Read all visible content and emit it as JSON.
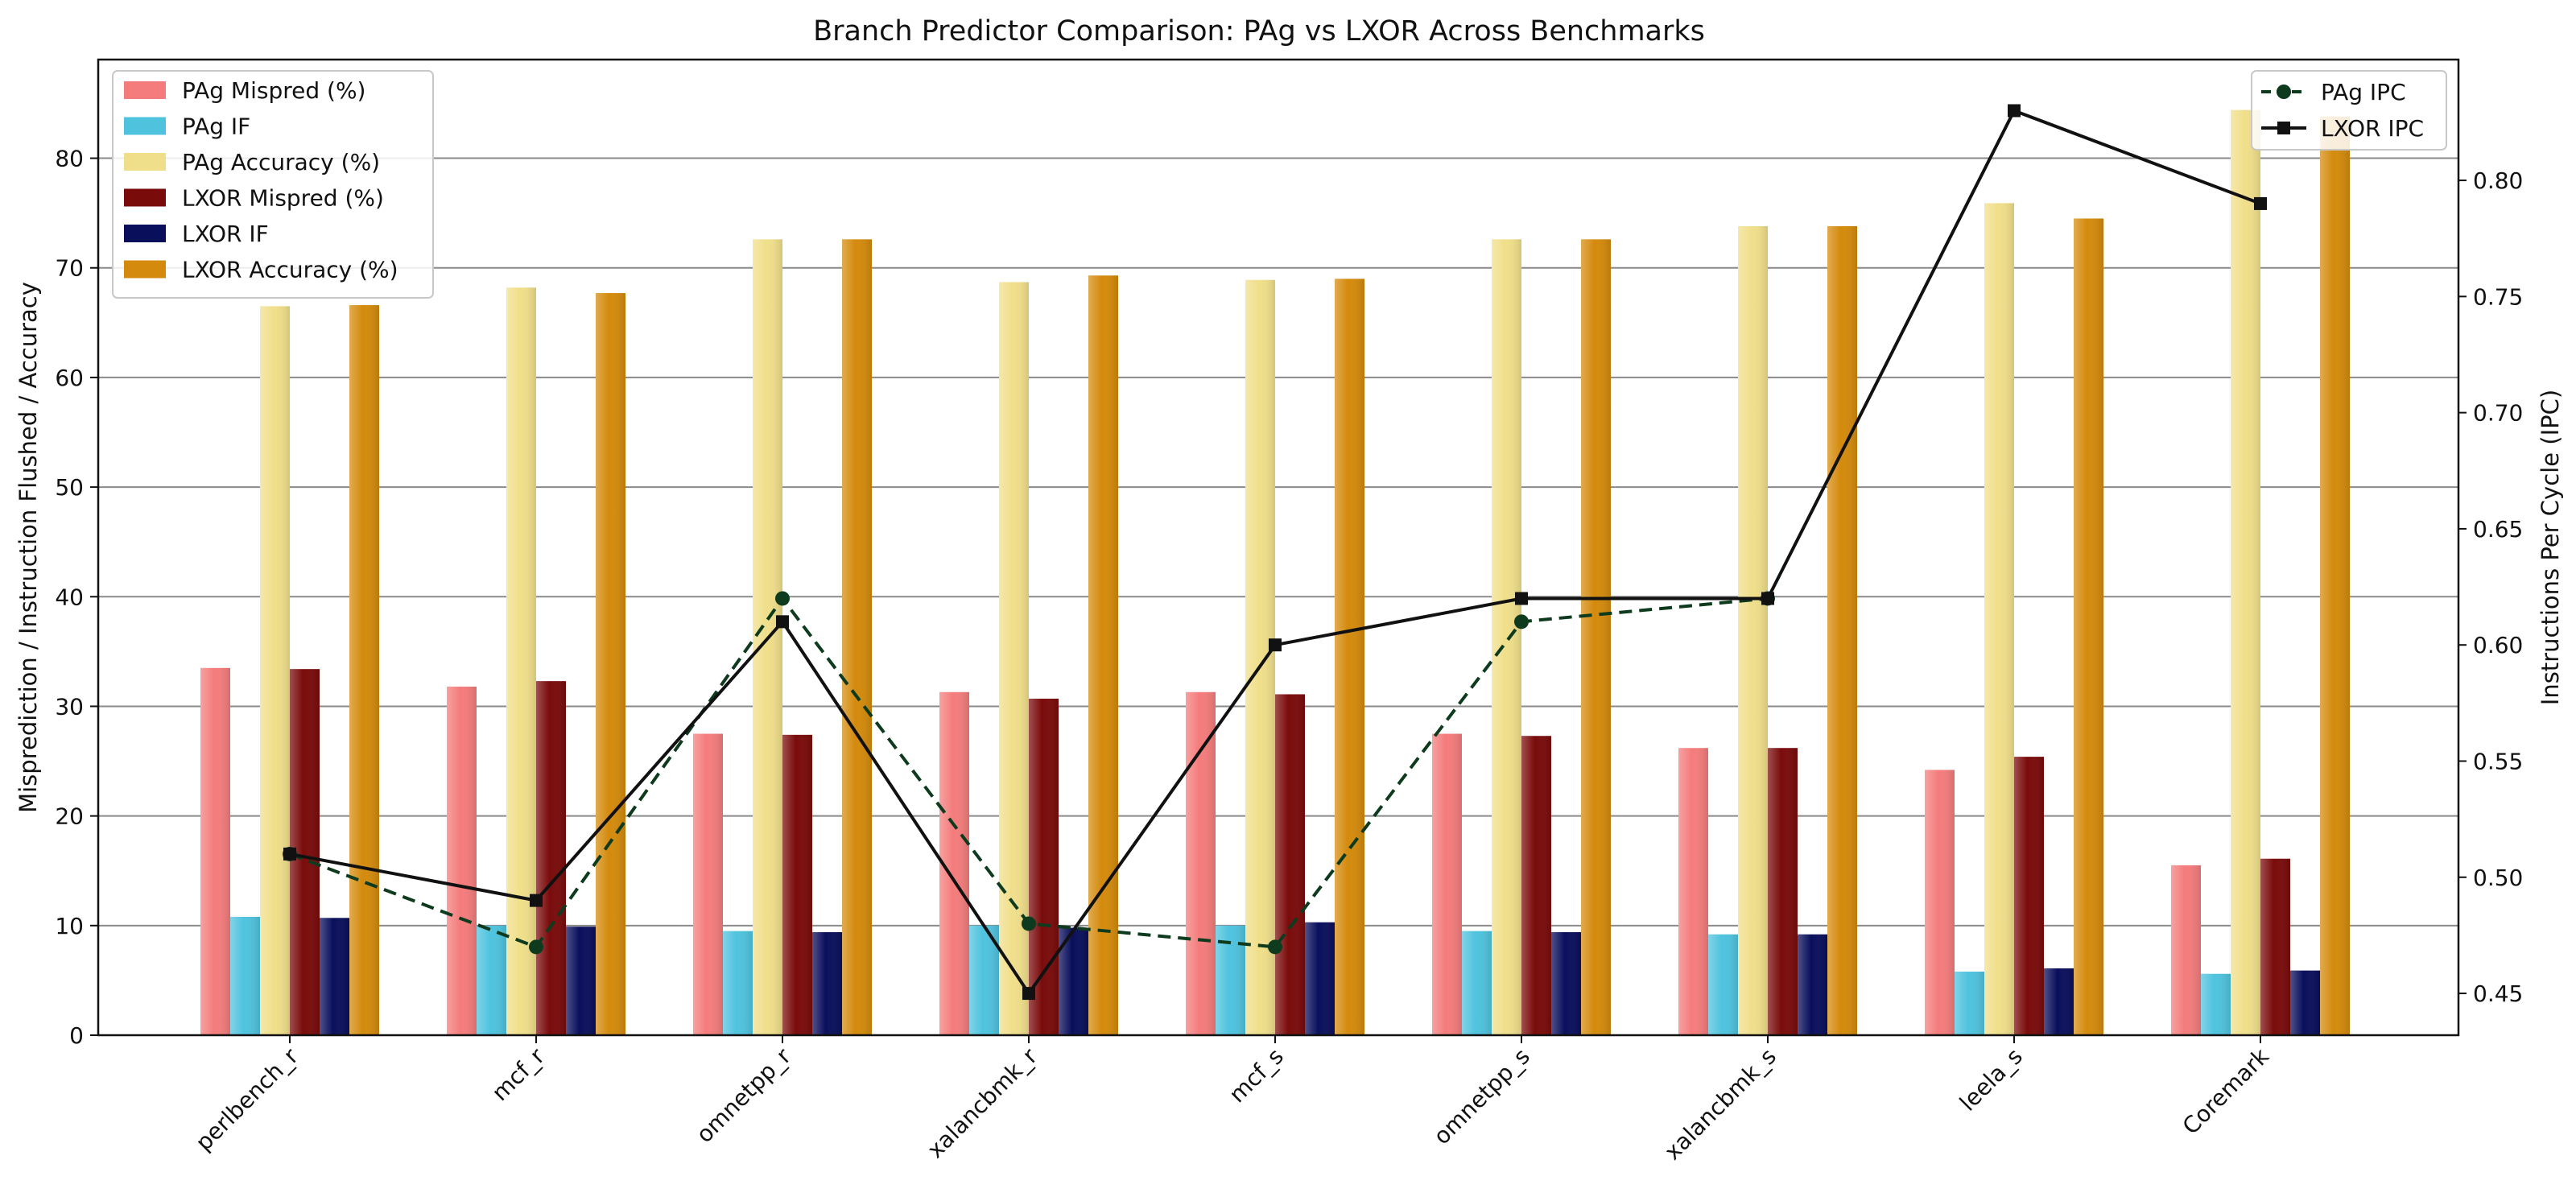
{
  "chart_data": {
    "type": "bar",
    "title": "Branch Predictor Comparison: PAg vs LXOR Across Benchmarks",
    "xlabel": "",
    "ylabel": "Misprediction / Instruction Flushed / Accuracy",
    "y2label": "Instructions Per Cycle (IPC)",
    "ylim": [
      0,
      89
    ],
    "yticks": [
      0,
      10,
      20,
      30,
      40,
      50,
      60,
      70,
      80
    ],
    "y2lim": [
      0.432,
      0.852
    ],
    "y2ticks": [
      0.45,
      0.5,
      0.55,
      0.6,
      0.65,
      0.7,
      0.75,
      0.8
    ],
    "y2tick_labels": [
      "0.45",
      "0.50",
      "0.55",
      "0.60",
      "0.65",
      "0.70",
      "0.75",
      "0.80"
    ],
    "grid": "horizontal",
    "categories": [
      "perlbench_r",
      "mcf_r",
      "omnetpp_r",
      "xalancbmk_r",
      "mcf_s",
      "omnetpp_s",
      "xalancbmk_s",
      "leela_s",
      "Coremark"
    ],
    "series": [
      {
        "name": "PAg Mispred (%)",
        "color": "#f47c7c",
        "values": [
          33.5,
          31.8,
          27.5,
          31.3,
          31.3,
          27.5,
          26.2,
          24.2,
          15.5
        ]
      },
      {
        "name": "PAg IF",
        "color": "#4fc3de",
        "values": [
          10.8,
          10.0,
          9.5,
          10.0,
          10.0,
          9.5,
          9.2,
          5.8,
          5.6
        ]
      },
      {
        "name": "PAg Accuracy (%)",
        "color": "#f0df8a",
        "values": [
          66.5,
          68.2,
          72.6,
          68.7,
          68.9,
          72.6,
          73.8,
          75.9,
          84.4
        ]
      },
      {
        "name": "LXOR Mispred (%)",
        "color": "#7a0b0b",
        "values": [
          33.4,
          32.3,
          27.4,
          30.7,
          31.1,
          27.3,
          26.2,
          25.4,
          16.1
        ]
      },
      {
        "name": "LXOR IF",
        "color": "#0a0f5c",
        "values": [
          10.7,
          9.9,
          9.4,
          9.8,
          10.3,
          9.4,
          9.2,
          6.1,
          5.9
        ]
      },
      {
        "name": "LXOR Accuracy (%)",
        "color": "#d48a0c",
        "values": [
          66.6,
          67.7,
          72.6,
          69.3,
          69.0,
          72.6,
          73.8,
          74.5,
          83.8
        ]
      }
    ],
    "lines": [
      {
        "name": "PAg IPC",
        "color": "#0e3a1e",
        "dash": true,
        "marker": "circle",
        "values": [
          0.51,
          0.47,
          0.62,
          0.48,
          0.47,
          0.61,
          0.62,
          null,
          null
        ]
      },
      {
        "name": "LXOR IPC",
        "color": "#111111",
        "dash": false,
        "marker": "square",
        "values": [
          0.51,
          0.49,
          0.61,
          0.45,
          0.6,
          0.62,
          0.62,
          0.83,
          0.79
        ]
      }
    ],
    "legend_left": "upper-left",
    "legend_right": "upper-right"
  }
}
